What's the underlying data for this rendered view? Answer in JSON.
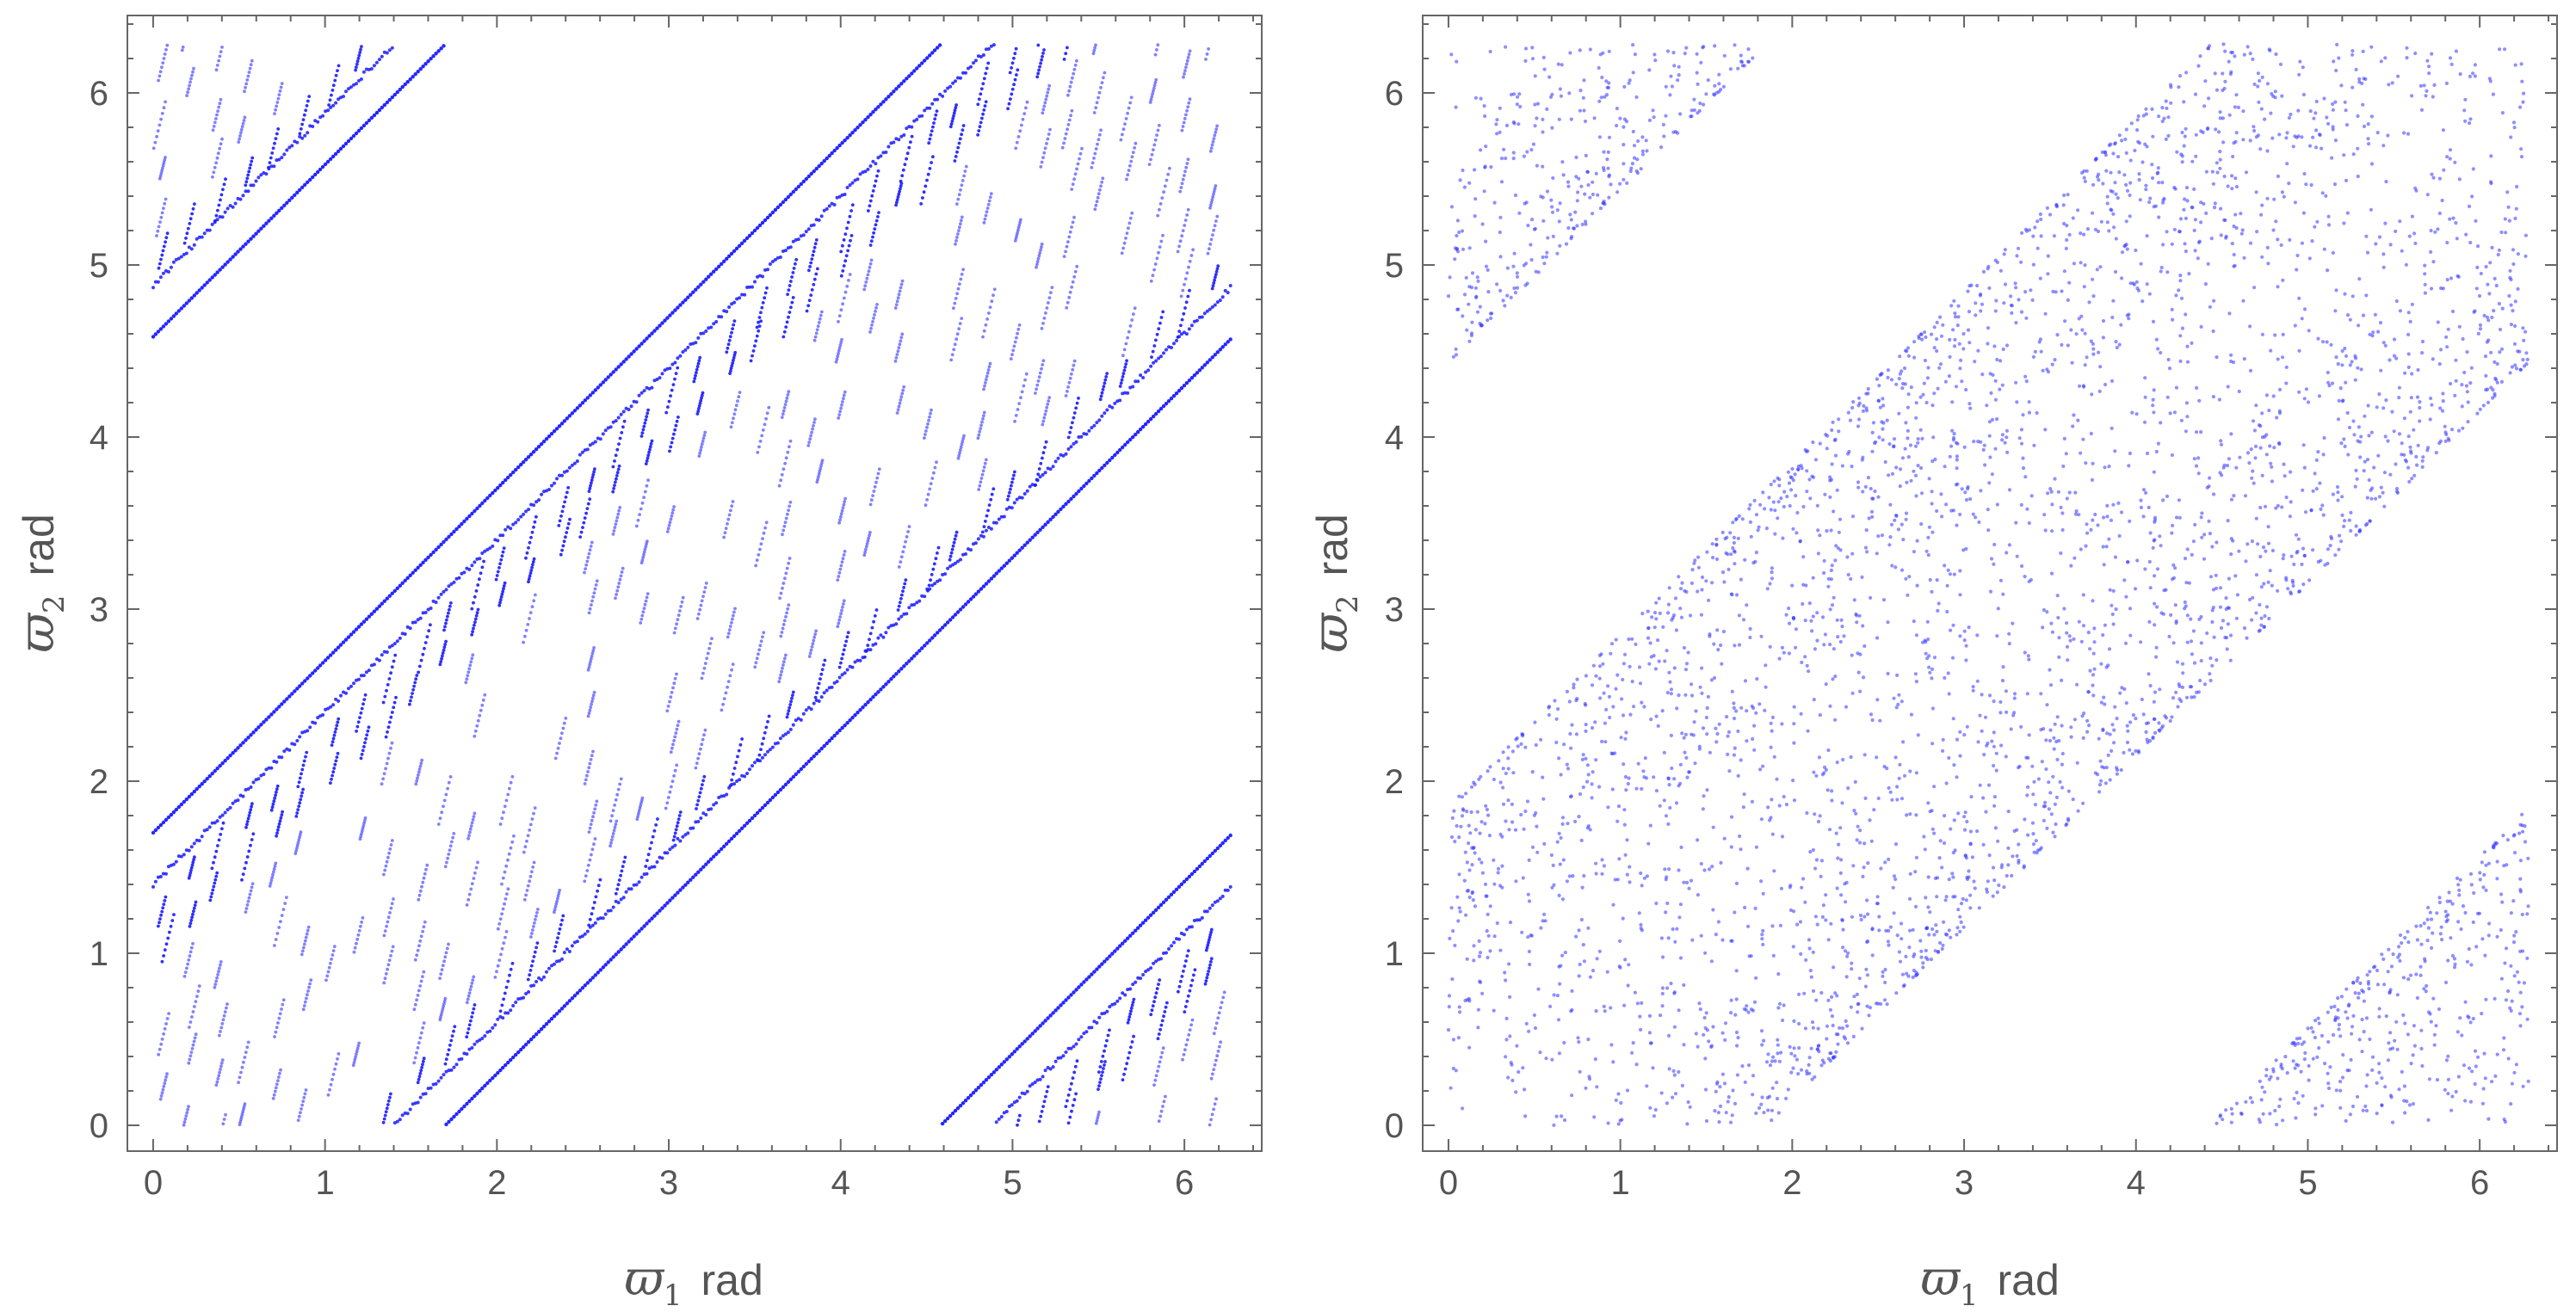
{
  "chart_data": [
    {
      "type": "scatter",
      "panel": "left",
      "title": "",
      "xlabel_symbol": "ϖ",
      "xlabel_subscript": "1",
      "xlabel_unit": "rad",
      "ylabel_symbol": "ϖ",
      "ylabel_subscript": "2",
      "ylabel_unit": "rad",
      "xlim": [
        -0.15,
        6.45
      ],
      "ylim": [
        -0.15,
        6.45
      ],
      "xticks": [
        "0",
        "1",
        "2",
        "3",
        "4",
        "5",
        "6"
      ],
      "yticks": [
        "0",
        "1",
        "2",
        "3",
        "4",
        "5",
        "6"
      ],
      "grid": false,
      "point_color": "#1a1aff",
      "pattern": "dense dash-like point chains forming a diagonal band",
      "bands": [
        {
          "x": [
            1.75,
            4.55
          ],
          "y": [
            0.0,
            6.28
          ],
          "note": "main band, oriented along ϖ2 = ϖ1 + c, c ∈ [-1.7, 1.7]"
        },
        {
          "note": "upper-left wrap",
          "x": [
            0.0,
            1.7
          ],
          "y": [
            4.6,
            6.28
          ]
        },
        {
          "note": "lower-right wrap",
          "x": [
            4.6,
            6.28
          ],
          "y": [
            0.0,
            1.7
          ]
        }
      ],
      "band_offsets_edge": [
        -1.7,
        1.7
      ],
      "band_offsets_strong": [
        -1.55,
        -1.4,
        1.4,
        1.55
      ]
    },
    {
      "type": "scatter",
      "panel": "right",
      "title": "",
      "xlabel_symbol": "ϖ",
      "xlabel_subscript": "1",
      "xlabel_unit": "rad",
      "ylabel_symbol": "ϖ",
      "ylabel_subscript": "2",
      "ylabel_unit": "rad",
      "xlim": [
        -0.15,
        6.45
      ],
      "ylim": [
        -0.15,
        6.45
      ],
      "xticks": [
        "0",
        "1",
        "2",
        "3",
        "4",
        "5",
        "6"
      ],
      "yticks": [
        "0",
        "1",
        "2",
        "3",
        "4",
        "5",
        "6"
      ],
      "grid": false,
      "point_color": "#3333ff",
      "pattern": "diffuse uniform scatter in a diagonal band",
      "band_offsets": [
        -1.85,
        1.85
      ],
      "bands": [
        {
          "note": "main band, ϖ2 − ϖ1 ∈ [-1.85, 1.85]"
        },
        {
          "note": "upper-left wrap",
          "x": [
            0.0,
            1.85
          ],
          "y": [
            4.43,
            6.28
          ]
        },
        {
          "note": "lower-right wrap",
          "x": [
            4.43,
            6.28
          ],
          "y": [
            0.0,
            1.85
          ]
        }
      ]
    }
  ]
}
